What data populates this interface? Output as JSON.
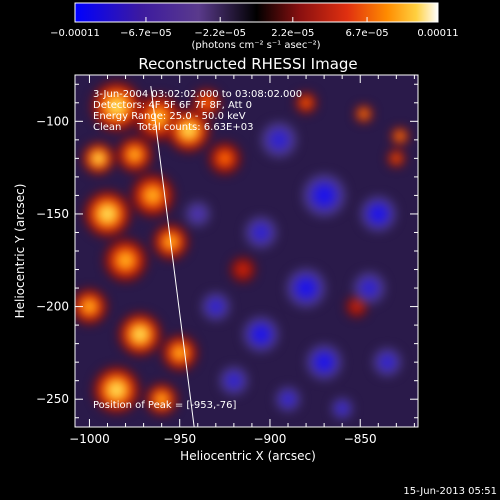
{
  "chart_data": {
    "type": "heatmap",
    "title": "Reconstructed RHESSI Image",
    "xlabel": "Heliocentric X (arcsec)",
    "ylabel": "Heliocentric Y (arcsec)",
    "xlim": [
      -1008,
      -818
    ],
    "ylim": [
      -265,
      -75
    ],
    "x_ticks": [
      {
        "value": -1000,
        "label": "−1000"
      },
      {
        "value": -950,
        "label": "−950"
      },
      {
        "value": -900,
        "label": "−900"
      },
      {
        "value": -850,
        "label": "−850"
      }
    ],
    "y_ticks": [
      {
        "value": -100,
        "label": "−100"
      },
      {
        "value": -150,
        "label": "−150"
      },
      {
        "value": -200,
        "label": "−200"
      },
      {
        "value": -250,
        "label": "−250"
      }
    ],
    "colorbar": {
      "min": -0.00011,
      "max": 0.00011,
      "tick_labels": [
        "−0.00011",
        "−6.7e−05",
        "−2.2e−05",
        "2.2e−05",
        "6.7e−05",
        "0.00011"
      ],
      "units_label": "(photons cm⁻² s⁻¹ asec⁻²)",
      "colors": [
        "#0000ff",
        "#3c1aa0",
        "#5a3a8c",
        "#000000",
        "#8a1010",
        "#e03010",
        "#ff8c00",
        "#ffd040",
        "#ffffff"
      ]
    },
    "annotations": [
      "3-Jun-2004 03:02:02.000 to 03:08:02.000",
      "Detectors: 4F 5F 6F 7F 8F, Att 0",
      "Energy Range: 25.0 - 50.0 keV",
      "Clean     Total counts: 6.63E+03"
    ],
    "peak_label": "Position of Peak = [-953,-76]",
    "peak": [
      -953,
      -76
    ],
    "limb_line": [
      [
        -966,
        -81
      ],
      [
        -942,
        -265
      ]
    ],
    "blobs": [
      [
        -985,
        -92,
        14,
        0.9
      ],
      [
        -962,
        -98,
        13,
        0.75
      ],
      [
        -945,
        -105,
        12,
        1.0
      ],
      [
        -975,
        -118,
        10,
        0.7
      ],
      [
        -995,
        -120,
        9,
        0.8
      ],
      [
        -990,
        -150,
        13,
        0.85
      ],
      [
        -965,
        -140,
        12,
        0.7
      ],
      [
        -955,
        -165,
        10,
        0.6
      ],
      [
        -980,
        -175,
        12,
        0.75
      ],
      [
        -1000,
        -200,
        10,
        0.6
      ],
      [
        -972,
        -215,
        12,
        0.8
      ],
      [
        -985,
        -245,
        13,
        0.9
      ],
      [
        -950,
        -225,
        10,
        0.7
      ],
      [
        -960,
        -250,
        9,
        0.6
      ],
      [
        -925,
        -120,
        9,
        0.4
      ],
      [
        -935,
        -90,
        8,
        0.45
      ],
      [
        -915,
        -180,
        7,
        0.3
      ],
      [
        -880,
        -90,
        6,
        0.5
      ],
      [
        -848,
        -96,
        5,
        0.7
      ],
      [
        -828,
        -108,
        5,
        0.75
      ],
      [
        -852,
        -200,
        6,
        0.3
      ],
      [
        -830,
        -120,
        5,
        0.5
      ],
      [
        -895,
        -110,
        10,
        -0.55
      ],
      [
        -870,
        -140,
        12,
        -0.7
      ],
      [
        -840,
        -150,
        10,
        -0.6
      ],
      [
        -905,
        -160,
        9,
        -0.5
      ],
      [
        -880,
        -190,
        11,
        -0.75
      ],
      [
        -845,
        -190,
        9,
        -0.55
      ],
      [
        -905,
        -215,
        10,
        -0.6
      ],
      [
        -870,
        -230,
        10,
        -0.7
      ],
      [
        -835,
        -230,
        8,
        -0.5
      ],
      [
        -920,
        -240,
        8,
        -0.45
      ],
      [
        -930,
        -200,
        8,
        -0.45
      ],
      [
        -890,
        -250,
        7,
        -0.5
      ],
      [
        -860,
        -255,
        6,
        -0.4
      ],
      [
        -940,
        -150,
        7,
        -0.35
      ]
    ]
  },
  "footer_date": "15-Jun-2013 05:51"
}
